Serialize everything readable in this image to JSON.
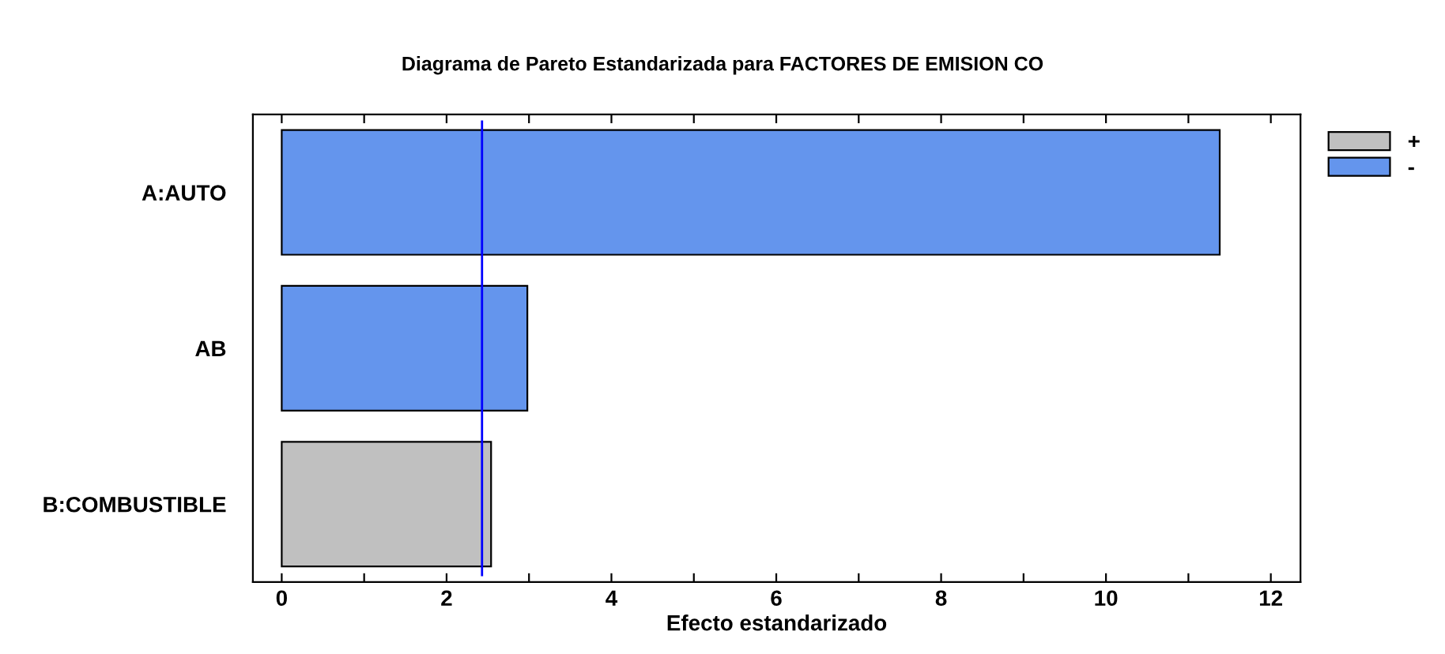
{
  "chart_data": {
    "type": "bar",
    "orientation": "horizontal",
    "title": "Diagrama de Pareto Estandarizada para FACTORES DE EMISION CO",
    "xlabel": "Efecto estandarizado",
    "categories": [
      "A:AUTO",
      "AB",
      "B:COMBUSTIBLE"
    ],
    "series": [
      {
        "name": "+",
        "color": "#c0c0c0",
        "values": [
          null,
          null,
          2.54
        ]
      },
      {
        "name": "-",
        "color": "#6495ed",
        "values": [
          11.38,
          2.98,
          null
        ]
      }
    ],
    "xlim": [
      -0.35,
      12.36
    ],
    "xticks": [
      0,
      {
        "value": 1,
        "label": null
      },
      2,
      {
        "value": 3,
        "label": null
      },
      4,
      {
        "value": 5,
        "label": null
      },
      6,
      {
        "value": 7,
        "label": null
      },
      8,
      {
        "value": 9,
        "label": null
      },
      10,
      {
        "value": 11,
        "label": null
      },
      12
    ],
    "ref_lines": [
      {
        "axis": "x",
        "value": 2.43,
        "color": "#0000ff"
      }
    ],
    "legend": "top right",
    "grid": false
  }
}
